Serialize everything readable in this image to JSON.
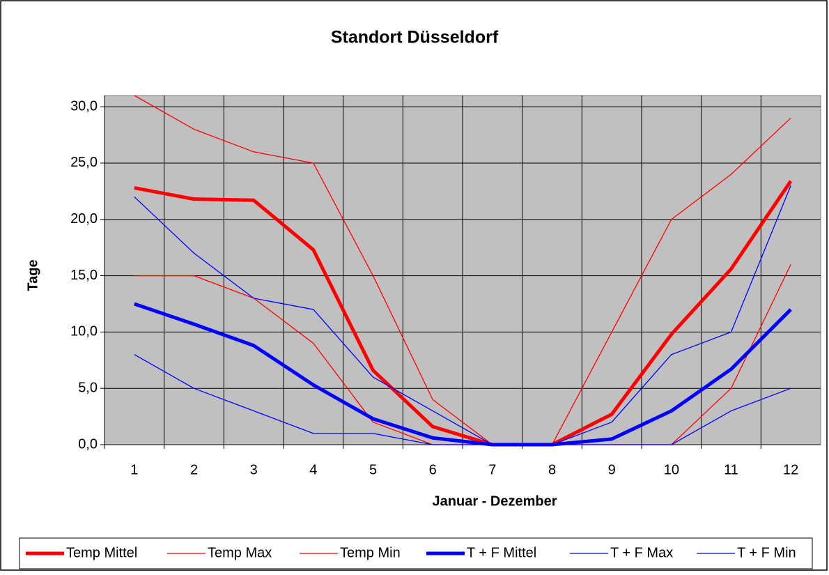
{
  "chart_data": {
    "type": "line",
    "title": "Standort Düsseldorf",
    "x_label": "Januar - Dezember",
    "y_label": "Tage",
    "categories": [
      "1",
      "2",
      "3",
      "4",
      "5",
      "6",
      "7",
      "8",
      "9",
      "10",
      "11",
      "12"
    ],
    "ylim": [
      0,
      31
    ],
    "yticks": [
      {
        "value": 0,
        "label": "0,0"
      },
      {
        "value": 5,
        "label": "5,0"
      },
      {
        "value": 10,
        "label": "10,0"
      },
      {
        "value": 15,
        "label": "15,0"
      },
      {
        "value": 20,
        "label": "20,0"
      },
      {
        "value": 25,
        "label": "25,0"
      },
      {
        "value": 30,
        "label": "30,0"
      }
    ],
    "grid": true,
    "legend": "bottom",
    "series": [
      {
        "name": "Temp Mittel",
        "color": "#ff0000",
        "width": 5,
        "values": [
          22.8,
          21.8,
          21.7,
          17.3,
          6.6,
          1.6,
          0,
          0,
          2.7,
          9.8,
          15.6,
          23.4
        ]
      },
      {
        "name": "Temp Max",
        "color": "#ff0000",
        "width": 1.3,
        "values": [
          31,
          28,
          26,
          25,
          15,
          4,
          0,
          0,
          10,
          20,
          24,
          29
        ]
      },
      {
        "name": "Temp Min",
        "color": "#ff0000",
        "width": 1.3,
        "values": [
          15,
          15,
          13,
          9,
          2,
          0,
          0,
          0,
          0,
          0,
          5,
          16
        ]
      },
      {
        "name": "T + F Mittel",
        "color": "#0000ff",
        "width": 5,
        "values": [
          12.5,
          10.7,
          8.8,
          5.3,
          2.3,
          0.6,
          0,
          0,
          0.5,
          3,
          6.7,
          12
        ]
      },
      {
        "name": "T + F Max",
        "color": "#0000ff",
        "width": 1.3,
        "values": [
          22,
          17,
          13,
          12,
          6,
          3,
          0,
          0,
          2,
          8,
          10,
          23
        ]
      },
      {
        "name": "T + F Min",
        "color": "#0000ff",
        "width": 1.3,
        "values": [
          8,
          5,
          3,
          1,
          1,
          0,
          0,
          0,
          0,
          0,
          3,
          5
        ]
      }
    ]
  }
}
